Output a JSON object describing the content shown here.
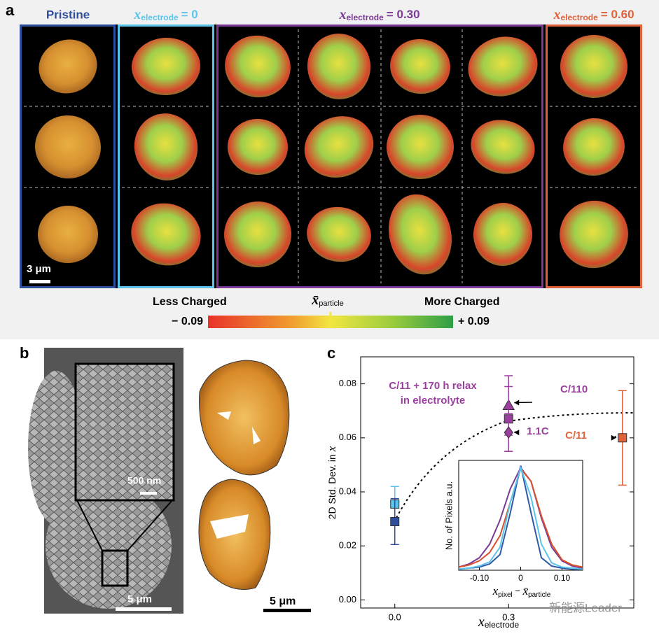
{
  "panel_a": {
    "label": "a",
    "columns": [
      {
        "title": "Pristine"
      },
      {
        "symbol": "x",
        "subscript": "electrode",
        "rest": "= 0"
      },
      {
        "symbol": "x",
        "subscript": "electrode",
        "rest": "= 0.30"
      },
      {
        "symbol": "x",
        "subscript": "electrode",
        "rest": "= 0.60"
      }
    ],
    "scale_bar": "3 μm",
    "colorbar": {
      "left_title": "Less Charged",
      "center_symbol": "x̄",
      "center_subscript": "particle",
      "right_title": "More Charged",
      "min_label": "− 0.09",
      "max_label": "+ 0.09"
    }
  },
  "panel_b": {
    "label": "b",
    "inset_scale_bar": "500 nm",
    "scale_bar": "5 μm",
    "right_scale_bar": "5 μm"
  },
  "chart_data": [
    {
      "type": "scatter",
      "label": "c",
      "y_label": "2D Std. Dev. in ",
      "y_label_symbol": "x",
      "x_label_symbol": "x",
      "x_label_subscript": "electrode",
      "xlim": [
        -0.09,
        0.63
      ],
      "ylim": [
        -0.003,
        0.09
      ],
      "xticks": [
        {
          "value": 0,
          "label": "0.0"
        },
        {
          "value": 0.3,
          "label": "0.3"
        }
      ],
      "yticks": [
        {
          "value": 0,
          "label": "0.00"
        },
        {
          "value": 0.02,
          "label": "0.02"
        },
        {
          "value": 0.04,
          "label": "0.04"
        },
        {
          "value": 0.06,
          "label": "0.06"
        },
        {
          "value": 0.08,
          "label": "0.08"
        }
      ],
      "points": [
        {
          "x": 0,
          "y": 0.0355,
          "error": 0.0065,
          "color": "#5cc4ea",
          "marker": "square"
        },
        {
          "x": 0,
          "y": 0.029,
          "error": 0.0085,
          "color": "#2f4f9e",
          "marker": "square"
        },
        {
          "x": 0.3,
          "y": 0.072,
          "error": 0.011,
          "color": "#9b3f9f",
          "marker": "triangle",
          "label_lines": [
            "C/110"
          ]
        },
        {
          "x": 0.3,
          "y": 0.067,
          "error": 0.012,
          "color": "#9b3f9f",
          "marker": "square",
          "label_lines": [
            "C/11 + 170 h relax",
            "in electrolyte"
          ]
        },
        {
          "x": 0.3,
          "y": 0.062,
          "error": 0.007,
          "color": "#9b3f9f",
          "marker": "diamond",
          "label_lines": [
            "1.1C"
          ]
        },
        {
          "x": 0.6,
          "y": 0.06,
          "error": 0.0175,
          "color": "#e0623a",
          "marker": "square",
          "label_lines": [
            "C/11"
          ]
        }
      ]
    },
    {
      "type": "line",
      "y_label": "No. of Pixels a.u.",
      "x_label_symbol": "x",
      "x_label_subscript": "pixel",
      "x_label_mid": " − ",
      "x_label_symbol2": "x̄",
      "x_label_subscript2": "particle",
      "xlim": [
        -0.15,
        0.15
      ],
      "ylim": [
        0,
        1.05
      ],
      "xticks": [
        {
          "value": -0.1,
          "label": "-0.10"
        },
        0,
        {
          "value": 0.1,
          "label": "0.10"
        }
      ],
      "x": [
        -0.15,
        -0.125,
        -0.1,
        -0.075,
        -0.05,
        -0.025,
        0,
        0.025,
        0.05,
        0.075,
        0.1,
        0.125,
        0.15
      ],
      "series": [
        {
          "color": "#7b3a96",
          "values": [
            0.03,
            0.06,
            0.12,
            0.25,
            0.48,
            0.78,
            0.98,
            0.85,
            0.5,
            0.22,
            0.09,
            0.04,
            0.02
          ]
        },
        {
          "color": "#d9502c",
          "values": [
            0.03,
            0.05,
            0.09,
            0.17,
            0.33,
            0.65,
            0.97,
            0.85,
            0.52,
            0.25,
            0.1,
            0.05,
            0.03
          ]
        },
        {
          "color": "#2f5aa8",
          "values": [
            0.01,
            0.02,
            0.03,
            0.06,
            0.15,
            0.55,
            1.0,
            0.55,
            0.12,
            0.04,
            0.02,
            0.01,
            0.01
          ]
        },
        {
          "color": "#5cc4ea",
          "values": [
            0.01,
            0.02,
            0.04,
            0.08,
            0.22,
            0.65,
            0.98,
            0.7,
            0.25,
            0.07,
            0.03,
            0.02,
            0.01
          ]
        }
      ]
    }
  ],
  "watermark": "新能源Leader"
}
